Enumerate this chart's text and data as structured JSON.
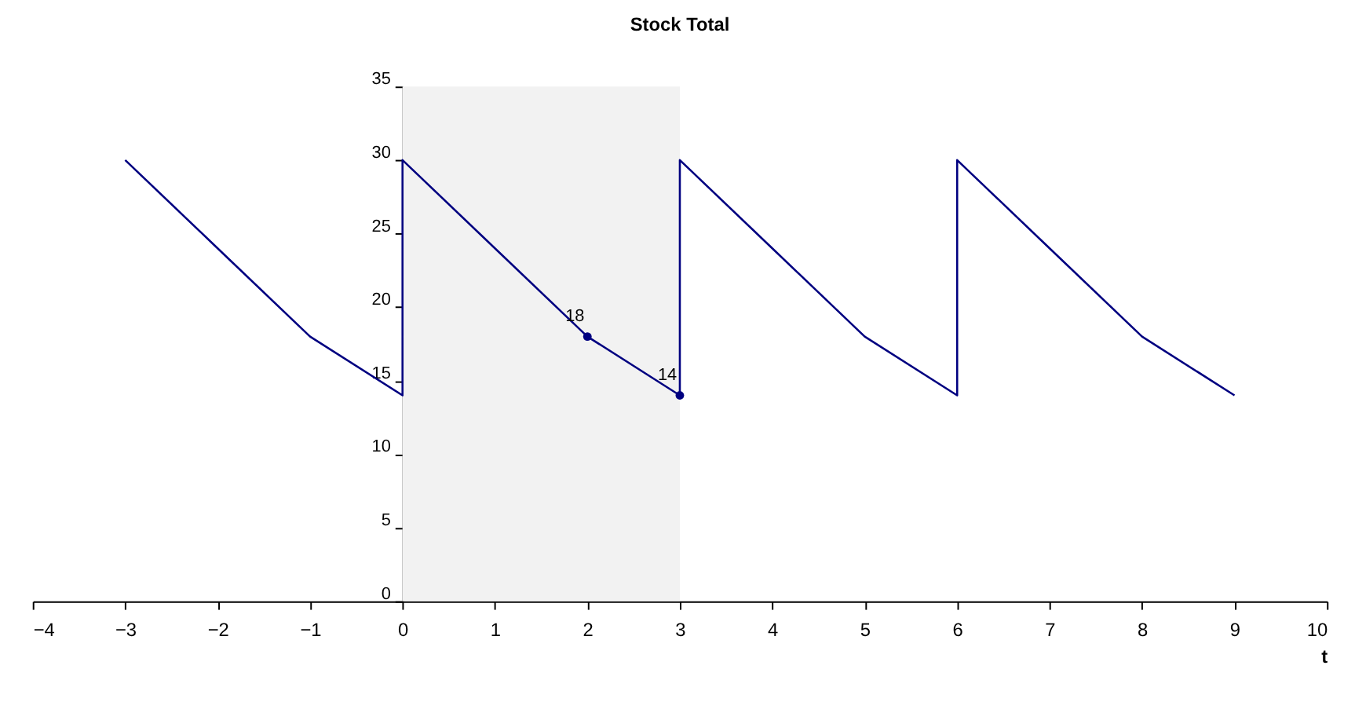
{
  "chart_data": {
    "type": "line",
    "title": "Stock Total",
    "xlabel": "t",
    "xlim": [
      -4,
      10
    ],
    "ylim": [
      0,
      35
    ],
    "xticks": [
      -4,
      -3,
      -2,
      -1,
      0,
      1,
      2,
      3,
      4,
      5,
      6,
      7,
      8,
      9,
      10
    ],
    "yticks": [
      0,
      5,
      10,
      15,
      20,
      25,
      30,
      35
    ],
    "grid": false,
    "series": [
      {
        "color": "#000080",
        "x": [
          -3,
          -2,
          -1,
          0,
          0,
          1,
          2,
          3,
          3,
          4,
          5,
          6,
          6,
          7,
          8,
          9
        ],
        "values": [
          30,
          24,
          18,
          14,
          30,
          24,
          18,
          14,
          30,
          24,
          18,
          14,
          30,
          24,
          18,
          14
        ]
      },
      {
        "type": "scatter",
        "color": "#000080",
        "marker": "circle",
        "x": [
          2,
          3
        ],
        "values": [
          18,
          14
        ]
      }
    ],
    "bands": [
      {
        "axis": "x",
        "from": 0,
        "to": 3,
        "color": "#f2f2f2"
      }
    ],
    "annotations": [
      {
        "text": "18",
        "x": 2,
        "y": 18
      },
      {
        "text": "14",
        "x": 3,
        "y": 14
      }
    ]
  }
}
